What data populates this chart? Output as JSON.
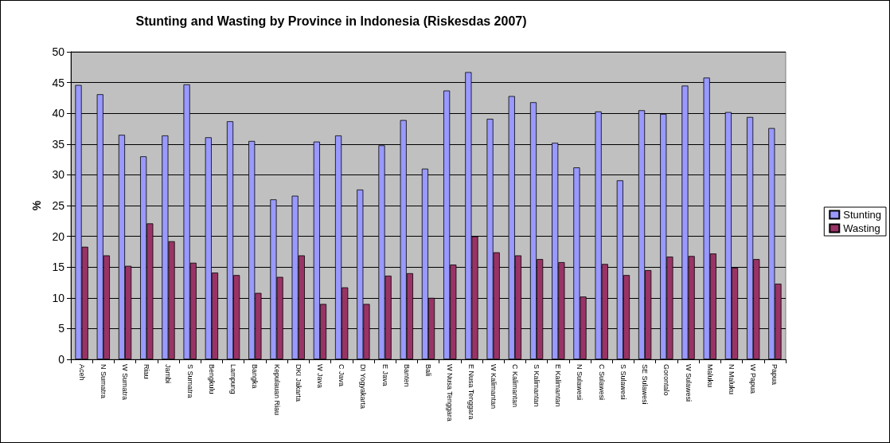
{
  "chart_data": {
    "type": "bar",
    "title": "Stunting and Wasting by Province in Indonesia (Riskesdas 2007)",
    "ylabel": "%",
    "categories": [
      "Aceh",
      "N Sumatra",
      "W Sumatra",
      "Riau",
      "Jambi",
      "S Sumatra",
      "Bengkulu",
      "Lampung",
      "Bangka",
      "Kepulauan Riau",
      "DKI Jakarta",
      "W Java",
      "C Java",
      "DI Yogyakarta",
      "E Java",
      "Banten",
      "Bali",
      "W Nusa Tenggara",
      "E Nusa Tenggara",
      "W Kalimantan",
      "C Kalimantan",
      "S Kalimantan",
      "E Kalimantan",
      "N Sulawesi",
      "C Sulawesi",
      "S Sulawesi",
      "SE Sulawesi",
      "Gorontalo",
      "W Sulawesi",
      "Maluku",
      "N Maluku",
      "W Papua",
      "Papua"
    ],
    "series": [
      {
        "name": "Stunting",
        "color": "#9999ff",
        "values": [
          44.6,
          43.1,
          36.5,
          33.0,
          36.4,
          44.7,
          36.1,
          38.7,
          35.5,
          26.0,
          26.6,
          35.4,
          36.4,
          27.6,
          34.8,
          38.9,
          31.0,
          43.7,
          46.7,
          39.1,
          42.8,
          41.8,
          35.2,
          31.2,
          40.3,
          29.1,
          40.5,
          39.9,
          44.5,
          45.8,
          40.2,
          39.4,
          37.6
        ]
      },
      {
        "name": "Wasting",
        "color": "#993366",
        "values": [
          18.3,
          16.9,
          15.2,
          22.1,
          19.2,
          15.7,
          14.1,
          13.7,
          10.8,
          13.4,
          16.9,
          9.0,
          11.7,
          9.0,
          13.6,
          14.0,
          10.0,
          15.4,
          20.0,
          17.4,
          16.9,
          16.3,
          15.8,
          10.2,
          15.5,
          13.7,
          14.5,
          16.7,
          16.8,
          17.2,
          14.9,
          16.3,
          12.3
        ]
      }
    ],
    "ylim": [
      0,
      50
    ],
    "yticks": [
      0,
      5,
      10,
      15,
      20,
      25,
      30,
      35,
      40,
      45,
      50
    ],
    "grid": "y",
    "legend": "right"
  }
}
